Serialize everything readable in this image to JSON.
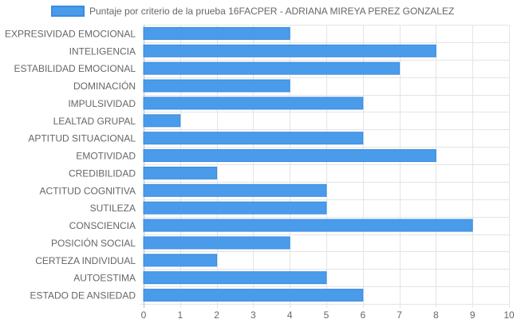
{
  "chart_data": {
    "type": "bar",
    "orientation": "horizontal",
    "categories": [
      "EXPRESIVIDAD EMOCIONAL",
      "INTELIGENCIA",
      "ESTABILIDAD EMOCIONAL",
      "DOMINACIÓN",
      "IMPULSIVIDAD",
      "LEALTAD GRUPAL",
      "APTITUD SITUACIONAL",
      "EMOTIVIDAD",
      "CREDIBILIDAD",
      "ACTITUD COGNITIVA",
      "SUTILEZA",
      "CONSCIENCIA",
      "POSICIÓN SOCIAL",
      "CERTEZA INDIVIDUAL",
      "AUTOESTIMA",
      "ESTADO DE ANSIEDAD"
    ],
    "series": [
      {
        "name": "Puntaje por criterio de la prueba 16FACPER - ADRIANA MIREYA PEREZ GONZALEZ",
        "values": [
          4,
          8,
          7,
          4,
          6,
          1,
          6,
          8,
          2,
          5,
          5,
          9,
          4,
          2,
          5,
          6
        ],
        "color": "#4a9bea",
        "border_color": "#3c8be0"
      }
    ],
    "xlim": [
      0,
      10
    ],
    "x_ticks": [
      "0",
      "1",
      "2",
      "3",
      "4",
      "5",
      "6",
      "7",
      "8",
      "9",
      "10"
    ],
    "grid": true,
    "legend": "top"
  }
}
